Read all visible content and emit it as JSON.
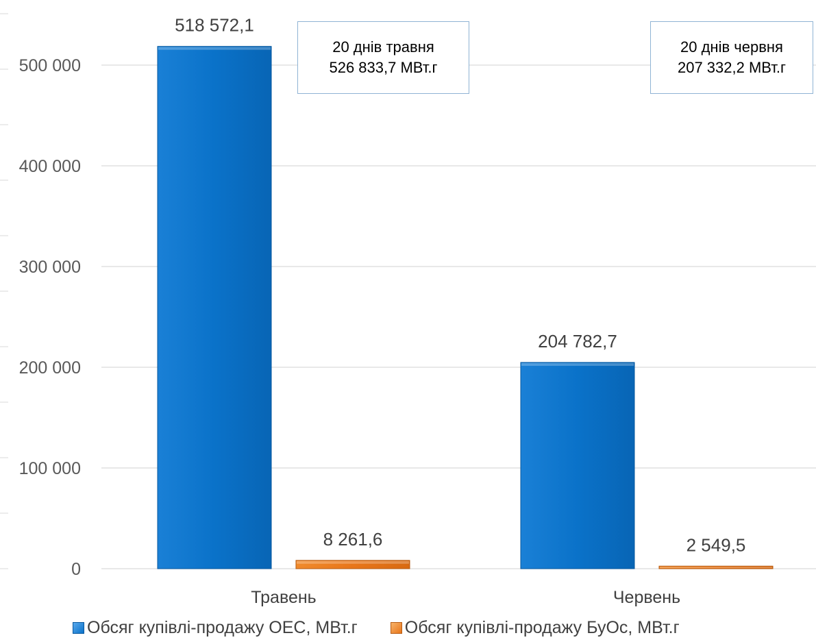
{
  "chart_data": {
    "type": "bar",
    "categories": [
      "Травень",
      "Червень"
    ],
    "series": [
      {
        "name": "Обсяг купівлі-продажу ОЕС, МВт.г",
        "values": [
          518572.1,
          204782.7
        ],
        "labels": [
          "518 572,1",
          "204 782,7"
        ],
        "color": "#0a72c9"
      },
      {
        "name": "Обсяг купівлі-продажу БуОс, МВт.г",
        "values": [
          8261.6,
          2549.5
        ],
        "labels": [
          "8 261,6",
          "2 549,5"
        ],
        "color": "#e8761a"
      }
    ],
    "ylim": [
      0,
      500000
    ],
    "yticks": [
      0,
      100000,
      200000,
      300000,
      400000,
      500000
    ],
    "ytick_labels": [
      "0",
      "100 000",
      "200 000",
      "300 000",
      "400 000",
      "500 000"
    ],
    "grid": true,
    "legend_position": "bottom",
    "annotations": [
      {
        "line1": "20 днів травня",
        "line2": "526 833,7 МВт.г"
      },
      {
        "line1": "20 днів червня",
        "line2": "207 332,2 МВт.г"
      }
    ]
  }
}
